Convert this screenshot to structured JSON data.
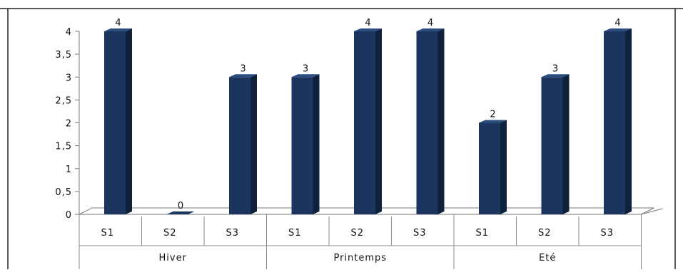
{
  "chart_data": {
    "type": "bar",
    "title": "",
    "xlabel": "",
    "ylabel": "",
    "ylim": [
      0,
      4
    ],
    "yticks": [
      "0",
      "0,5",
      "1",
      "1,5",
      "2",
      "2,5",
      "3",
      "3,5",
      "4"
    ],
    "groups": [
      "Hiver",
      "Printemps",
      "Eté"
    ],
    "categories": [
      "S1",
      "S2",
      "S3",
      "S1",
      "S2",
      "S3",
      "S1",
      "S2",
      "S3"
    ],
    "group_of_category": [
      0,
      0,
      0,
      1,
      1,
      1,
      2,
      2,
      2
    ],
    "values": [
      4,
      0,
      3,
      3,
      4,
      4,
      2,
      3,
      4
    ],
    "bar_color": "#1b355e",
    "bar_side_color": "#0f213c",
    "bar_top_color": "#2b4d7f",
    "grid": false,
    "legend": "none"
  }
}
